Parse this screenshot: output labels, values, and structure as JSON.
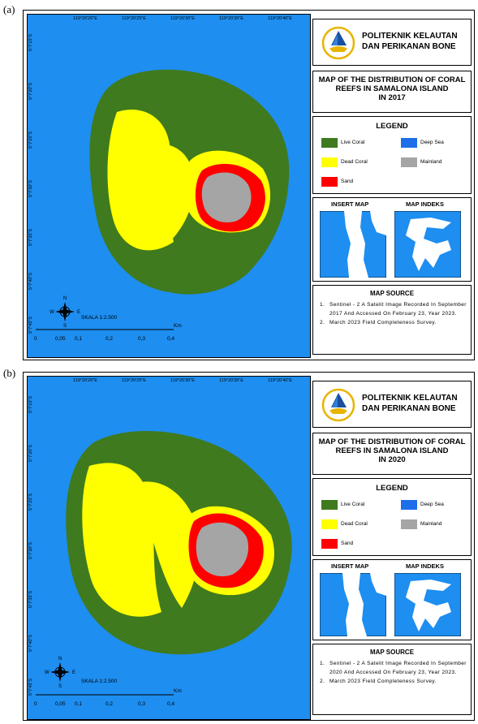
{
  "legend_colors": {
    "live_coral": "#3f7a1e",
    "dead_coral": "#ffff00",
    "sand": "#ff0000",
    "deep_sea": "#1c6fe8",
    "mainland": "#a5a5a5",
    "sea": "#1e8ef0"
  },
  "panels": [
    {
      "label": "(a)",
      "org": "POLITEKNIK KELAUTAN DAN PERIKANAN BONE",
      "title_lines": [
        "MAP OF THE DISTRIBUTION OF CORAL",
        "REEFS IN SAMALONA ISLAND",
        "IN 2017"
      ],
      "legend_title": "LEGEND",
      "legend": [
        "Live Coral",
        "Deep Sea",
        "Dead Coral",
        "Mainland",
        "Sand"
      ],
      "insert_title": "INSERT MAP",
      "index_title": "MAP INDEKS",
      "source_title": "MAP SOURCE",
      "sources": [
        "Sentinel - 2 A Satelit Image Recorded In September 2017 And Accessed On February 23, Year 2023.",
        "March 2023 Field Completeness Survey."
      ],
      "top_coords": [
        "119°20'20\"E",
        "119°20'25\"E",
        "119°20'30\"E",
        "119°20'35\"E",
        "119°20'40\"E"
      ],
      "left_coords": [
        "5°7'15\"S",
        "5°7'20\"S",
        "5°7'25\"S",
        "5°7'30\"S",
        "5°7'35\"S",
        "5°7'40\"S",
        "5°7'45\"S"
      ],
      "scale_text": "SKALA 1:2.500",
      "scale_ticks": [
        "0",
        "0,05",
        "0,1",
        "0,2",
        "0,3",
        "0,4"
      ],
      "scale_unit": "Km",
      "north": "N",
      "south": "S",
      "east": "E",
      "west": "W"
    },
    {
      "label": "(b)",
      "org": "POLITEKNIK KELAUTAN DAN PERIKANAN BONE",
      "title_lines": [
        "MAP OF THE DISTRIBUTION OF CORAL",
        "REEFS IN SAMALONA ISLAND",
        "IN 2020"
      ],
      "legend_title": "LEGEND",
      "legend": [
        "Live Coral",
        "Deep Sea",
        "Dead Coral",
        "Mainland",
        "Sand"
      ],
      "insert_title": "INSERT MAP",
      "index_title": "MAP INDEKS",
      "source_title": "MAP SOURCE",
      "sources": [
        "Sentinel - 2 A Satelit Image Recorded In September 2020 And Accessed On February 23, Year 2023.",
        "March 2023 Field Completeness Survey."
      ],
      "top_coords": [
        "119°20'20\"E",
        "119°20'25\"E",
        "119°20'30\"E",
        "119°20'35\"E",
        "119°20'40\"E"
      ],
      "left_coords": [
        "5°7'15\"S",
        "5°7'20\"S",
        "5°7'25\"S",
        "5°7'30\"S",
        "5°7'35\"S",
        "5°7'40\"S",
        "5°7'45\"S"
      ],
      "scale_text": "SKALA 1:2.500",
      "scale_ticks": [
        "0",
        "0,05",
        "0,1",
        "0,2",
        "0,3",
        "0,4"
      ],
      "scale_unit": "Km",
      "north": "N",
      "south": "S",
      "east": "E",
      "west": "W"
    }
  ]
}
